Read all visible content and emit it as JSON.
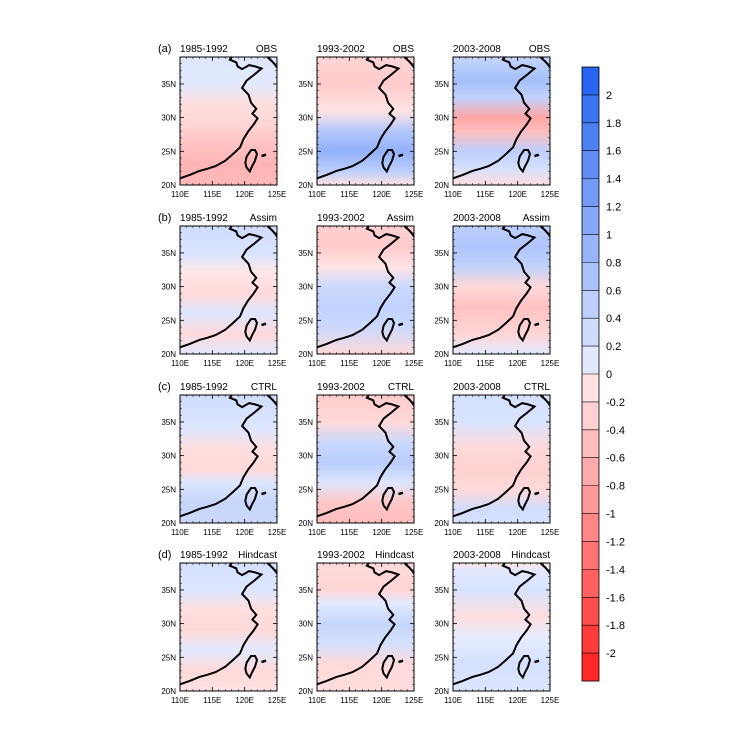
{
  "chart_data": {
    "type": "heatmap",
    "rows": [
      {
        "label": "(a)",
        "model": "OBS"
      },
      {
        "label": "(b)",
        "model": "Assim"
      },
      {
        "label": "(c)",
        "model": "CTRL"
      },
      {
        "label": "(d)",
        "model": "Hindcast"
      }
    ],
    "periods": [
      "1985-1992",
      "1993-2002",
      "2003-2008"
    ],
    "x_ticks": [
      "110E",
      "115E",
      "120E",
      "125E"
    ],
    "y_ticks": [
      "20N",
      "25N",
      "30N",
      "35N"
    ],
    "xlim": [
      110,
      125
    ],
    "ylim": [
      20,
      39
    ],
    "colorbar": {
      "ticks": [
        "2",
        "1.8",
        "1.6",
        "1.4",
        "1.2",
        "1",
        "0.8",
        "0.6",
        "0.4",
        "0.2",
        "0",
        "-0.2",
        "-0.4",
        "-0.6",
        "-0.8",
        "-1",
        "-1.2",
        "-1.4",
        "-1.6",
        "-1.8",
        "-2"
      ],
      "range": [
        -2.2,
        2.2
      ],
      "positive_color": "#1f5ff0",
      "negative_color": "#ff1f1f"
    },
    "fields": [
      [
        [
          {
            "lat": 20,
            "v": -0.55
          },
          {
            "lat": 23,
            "v": -0.6
          },
          {
            "lat": 26,
            "v": -0.45
          },
          {
            "lat": 29,
            "v": -0.25
          },
          {
            "lat": 32,
            "v": -0.15
          },
          {
            "lat": 35,
            "v": 0.1
          },
          {
            "lat": 39,
            "v": 0.15
          }
        ],
        [
          {
            "lat": 20,
            "v": -0.1
          },
          {
            "lat": 22,
            "v": 0.5
          },
          {
            "lat": 25,
            "v": 0.95
          },
          {
            "lat": 28,
            "v": 0.6
          },
          {
            "lat": 31,
            "v": -0.1
          },
          {
            "lat": 35,
            "v": -0.35
          },
          {
            "lat": 39,
            "v": -0.25
          }
        ],
        [
          {
            "lat": 20,
            "v": -0.15
          },
          {
            "lat": 22.5,
            "v": 0.25
          },
          {
            "lat": 25,
            "v": 0.5
          },
          {
            "lat": 28,
            "v": -0.5
          },
          {
            "lat": 30,
            "v": -0.75
          },
          {
            "lat": 33,
            "v": 0.45
          },
          {
            "lat": 35.5,
            "v": 0.75
          },
          {
            "lat": 39,
            "v": 0.4
          }
        ]
      ],
      [
        [
          {
            "lat": 20,
            "v": 0.1
          },
          {
            "lat": 23,
            "v": -0.2
          },
          {
            "lat": 26,
            "v": 0.15
          },
          {
            "lat": 29,
            "v": -0.2
          },
          {
            "lat": 32,
            "v": -0.05
          },
          {
            "lat": 35,
            "v": 0.2
          },
          {
            "lat": 39,
            "v": 0.3
          }
        ],
        [
          {
            "lat": 20,
            "v": -0.2
          },
          {
            "lat": 24,
            "v": 0.35
          },
          {
            "lat": 27,
            "v": 0.45
          },
          {
            "lat": 30,
            "v": 0.35
          },
          {
            "lat": 33,
            "v": -0.1
          },
          {
            "lat": 36,
            "v": -0.35
          },
          {
            "lat": 39,
            "v": -0.3
          }
        ],
        [
          {
            "lat": 20,
            "v": 0.1
          },
          {
            "lat": 23,
            "v": -0.25
          },
          {
            "lat": 27,
            "v": -0.45
          },
          {
            "lat": 30,
            "v": -0.2
          },
          {
            "lat": 33,
            "v": 0.45
          },
          {
            "lat": 36,
            "v": 0.65
          },
          {
            "lat": 39,
            "v": 0.5
          }
        ]
      ],
      [
        [
          {
            "lat": 20,
            "v": 0.35
          },
          {
            "lat": 23,
            "v": 0.4
          },
          {
            "lat": 26,
            "v": 0.15
          },
          {
            "lat": 28,
            "v": -0.2
          },
          {
            "lat": 31,
            "v": -0.15
          },
          {
            "lat": 34,
            "v": 0.15
          },
          {
            "lat": 39,
            "v": 0.3
          }
        ],
        [
          {
            "lat": 20,
            "v": -0.5
          },
          {
            "lat": 23,
            "v": -0.4
          },
          {
            "lat": 26,
            "v": 0.15
          },
          {
            "lat": 29,
            "v": 0.55
          },
          {
            "lat": 32,
            "v": 0.35
          },
          {
            "lat": 35,
            "v": -0.2
          },
          {
            "lat": 39,
            "v": -0.35
          }
        ],
        [
          {
            "lat": 20,
            "v": 0.2
          },
          {
            "lat": 22,
            "v": 0.3
          },
          {
            "lat": 25,
            "v": -0.2
          },
          {
            "lat": 28,
            "v": -0.3
          },
          {
            "lat": 31,
            "v": -0.2
          },
          {
            "lat": 35,
            "v": 0.2
          },
          {
            "lat": 39,
            "v": 0.25
          }
        ]
      ],
      [
        [
          {
            "lat": 20,
            "v": -0.1
          },
          {
            "lat": 23,
            "v": -0.2
          },
          {
            "lat": 26,
            "v": 0.1
          },
          {
            "lat": 29,
            "v": -0.2
          },
          {
            "lat": 32,
            "v": -0.15
          },
          {
            "lat": 35,
            "v": 0.15
          },
          {
            "lat": 39,
            "v": 0.25
          }
        ],
        [
          {
            "lat": 20,
            "v": -0.15
          },
          {
            "lat": 24,
            "v": -0.2
          },
          {
            "lat": 27,
            "v": 0.25
          },
          {
            "lat": 30,
            "v": 0.4
          },
          {
            "lat": 33,
            "v": 0.1
          },
          {
            "lat": 35,
            "v": -0.25
          },
          {
            "lat": 39,
            "v": -0.2
          }
        ],
        [
          {
            "lat": 20,
            "v": 0.15
          },
          {
            "lat": 24,
            "v": 0.25
          },
          {
            "lat": 28,
            "v": 0.05
          },
          {
            "lat": 31,
            "v": -0.15
          },
          {
            "lat": 35,
            "v": 0.2
          },
          {
            "lat": 38,
            "v": 0.1
          },
          {
            "lat": 39,
            "v": -0.1
          }
        ]
      ]
    ]
  }
}
